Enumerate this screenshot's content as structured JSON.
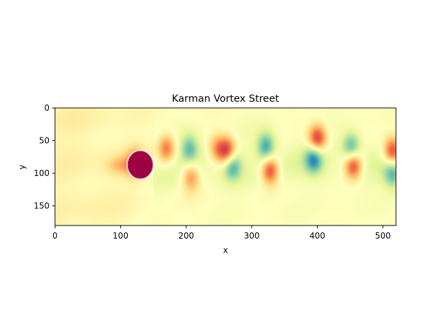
{
  "chart_data": {
    "type": "heatmap",
    "title": "Karman Vortex Street",
    "xlabel": "x",
    "ylabel": "y",
    "xlim": [
      0,
      520
    ],
    "ylim": [
      180,
      0
    ],
    "x_ticks": [
      0,
      100,
      200,
      300,
      400,
      500
    ],
    "y_ticks": [
      0,
      50,
      100,
      150
    ],
    "colormap": "Spectral",
    "colormap_stops": [
      "#9e0142",
      "#d53e4f",
      "#f46d43",
      "#fdae61",
      "#fee08b",
      "#ffffbf",
      "#e6f598",
      "#abdda4",
      "#66c2a5",
      "#3288bd",
      "#5e4fa2"
    ],
    "grid": false,
    "obstacle": {
      "cx": 130,
      "cy": 87,
      "rx": 20,
      "ry": 22,
      "value": 1.0
    },
    "vortices": [
      {
        "x": 122,
        "y": 84,
        "value": 0.55
      },
      {
        "x": 170,
        "y": 62,
        "value": 0.6
      },
      {
        "x": 205,
        "y": 63,
        "value": -0.55
      },
      {
        "x": 207,
        "y": 105,
        "value": 0.55
      },
      {
        "x": 247,
        "y": 62,
        "value": 0.45
      },
      {
        "x": 263,
        "y": 67,
        "value": 0.9
      },
      {
        "x": 270,
        "y": 88,
        "value": -0.7
      },
      {
        "x": 322,
        "y": 60,
        "value": -0.7
      },
      {
        "x": 328,
        "y": 95,
        "value": 0.85
      },
      {
        "x": 400,
        "y": 48,
        "value": 0.9
      },
      {
        "x": 395,
        "y": 78,
        "value": -0.75
      },
      {
        "x": 452,
        "y": 60,
        "value": -0.65
      },
      {
        "x": 455,
        "y": 88,
        "value": 0.85
      },
      {
        "x": 515,
        "y": 68,
        "value": 0.9
      },
      {
        "x": 515,
        "y": 100,
        "value": -0.6
      }
    ]
  }
}
